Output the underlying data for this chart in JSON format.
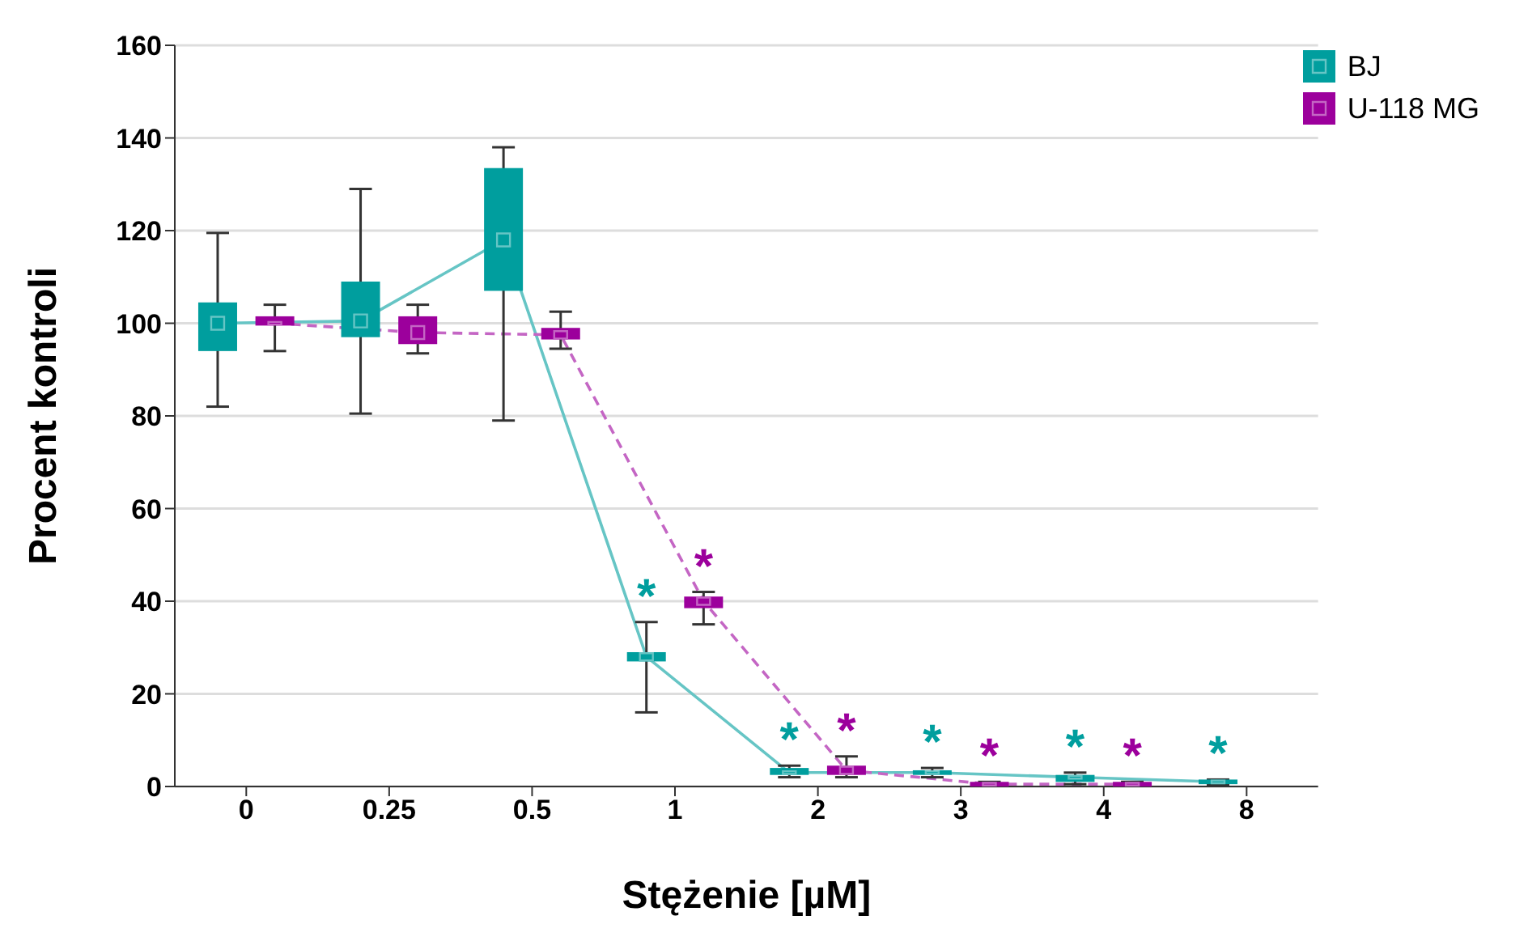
{
  "chart_data": {
    "type": "box",
    "xlabel": "Stężenie [µM]",
    "ylabel": "Procent kontroli",
    "categories": [
      "0",
      "0.25",
      "0.5",
      "1",
      "2",
      "3",
      "4",
      "8"
    ],
    "ylim": [
      0,
      160
    ],
    "yticks": [
      0,
      20,
      40,
      60,
      80,
      100,
      120,
      140,
      160
    ],
    "grid": "y",
    "legend": "top right",
    "marker": "square",
    "series": [
      {
        "name": "BJ",
        "color": "#009e9e",
        "line_style": "solid",
        "value_labels": [
          null,
          null,
          null,
          "*",
          "*",
          "*",
          "*",
          "*"
        ],
        "boxes": [
          {
            "low": 82,
            "q1": 94,
            "median": 100,
            "q3": 104.5,
            "high": 119.5
          },
          {
            "low": 80.5,
            "q1": 97,
            "median": 100.5,
            "q3": 109,
            "high": 129
          },
          {
            "low": 79,
            "q1": 107,
            "median": 118,
            "q3": 133.5,
            "high": 138
          },
          {
            "low": 16,
            "q1": 27,
            "median": 28,
            "q3": 29,
            "high": 35.5
          },
          {
            "low": 2,
            "q1": 2.5,
            "median": 3,
            "q3": 4,
            "high": 4.5
          },
          {
            "low": 2,
            "q1": 2.5,
            "median": 3,
            "q3": 3.5,
            "high": 4
          },
          {
            "low": 0.5,
            "q1": 1,
            "median": 2,
            "q3": 2.5,
            "high": 3
          },
          {
            "low": 0.3,
            "q1": 0.5,
            "median": 1,
            "q3": 1.5,
            "high": 1.5
          }
        ]
      },
      {
        "name": "U-118 MG",
        "color": "#9c009c",
        "line_style": "dashed",
        "value_labels": [
          null,
          null,
          null,
          "*",
          "*",
          "*",
          "*",
          null
        ],
        "boxes": [
          {
            "low": 94,
            "q1": 99.5,
            "median": 100,
            "q3": 101.5,
            "high": 104
          },
          {
            "low": 93.5,
            "q1": 95.5,
            "median": 98,
            "q3": 101.5,
            "high": 104
          },
          {
            "low": 94.5,
            "q1": 96.5,
            "median": 97.5,
            "q3": 99,
            "high": 102.5
          },
          {
            "low": 35,
            "q1": 38.5,
            "median": 40,
            "q3": 41,
            "high": 42
          },
          {
            "low": 2,
            "q1": 2.5,
            "median": 3.5,
            "q3": 4.5,
            "high": 6.5
          },
          {
            "low": 0,
            "q1": 0,
            "median": 0.5,
            "q3": 1,
            "high": 1
          },
          {
            "low": 0,
            "q1": 0,
            "median": 0.5,
            "q3": 1,
            "high": 1
          },
          null
        ]
      }
    ]
  }
}
